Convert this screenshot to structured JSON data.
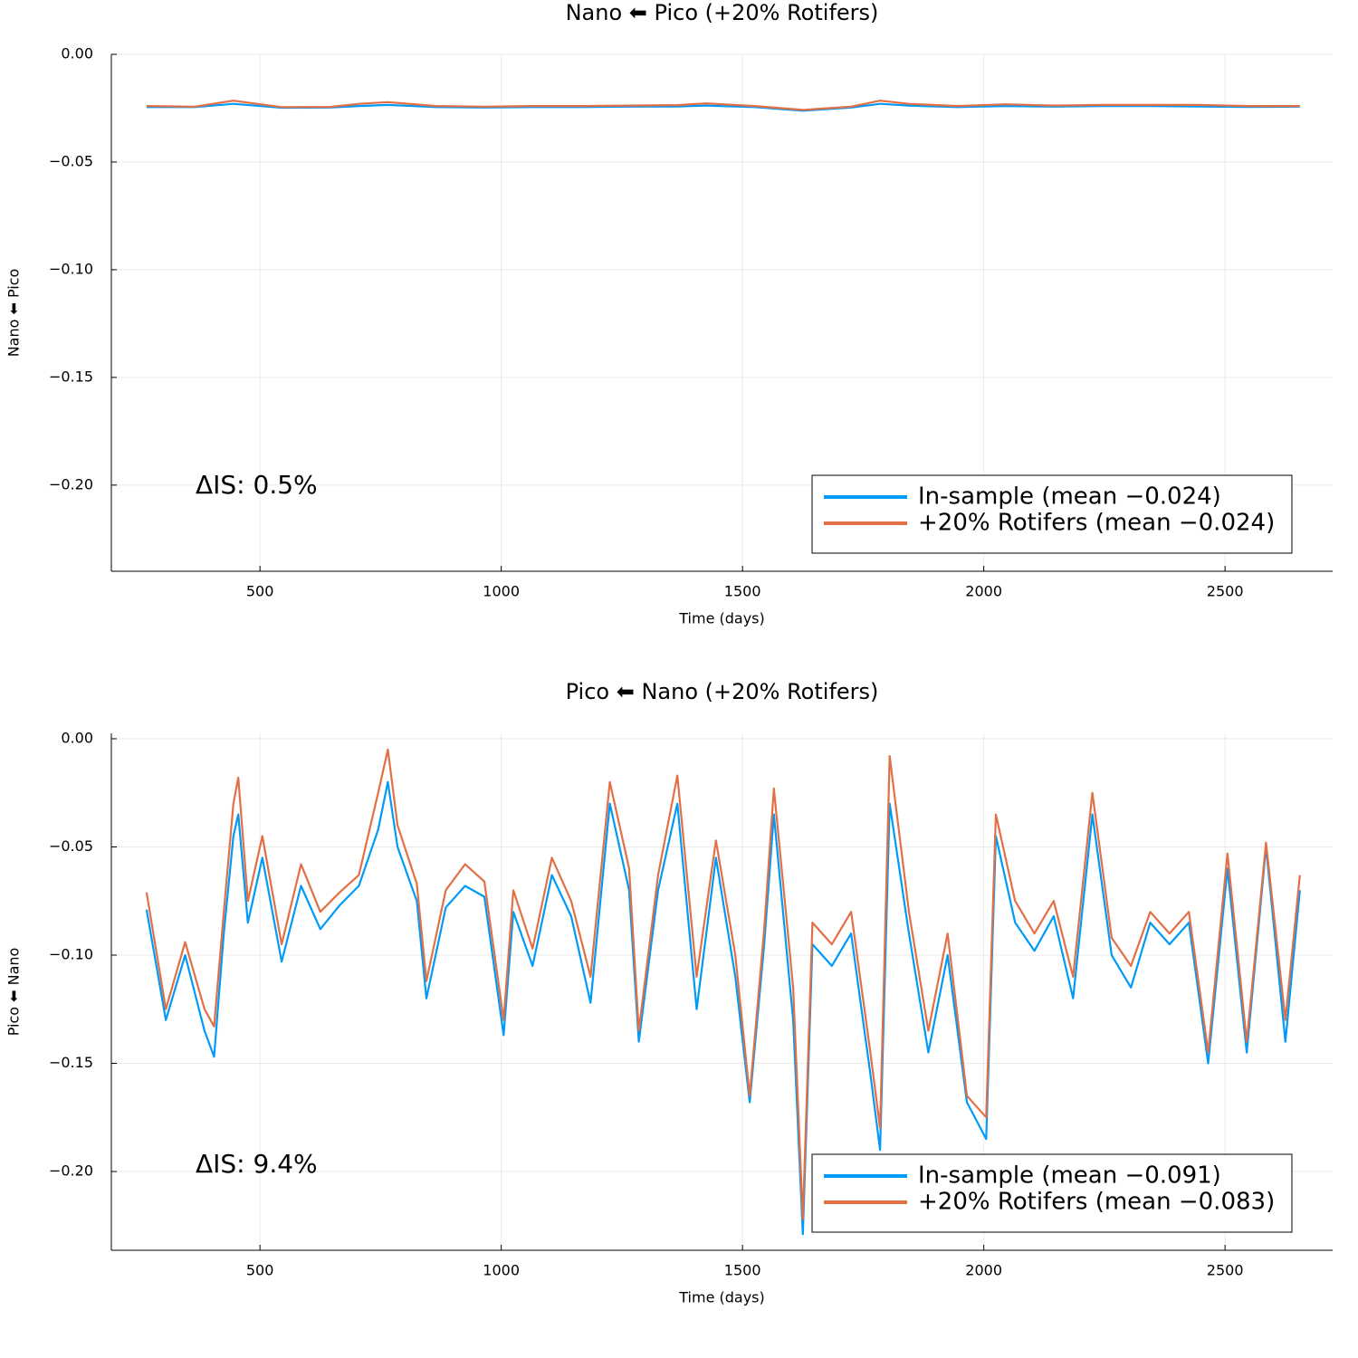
{
  "chart_data": [
    {
      "type": "line",
      "title": "Nano ⬅ Pico (+20% Rotifers)",
      "xlabel": "Time (days)",
      "ylabel": "Nano ⬅ Pico",
      "annotation": "ΔIS: 0.5%",
      "legend": "lower right",
      "grid": true,
      "xlim": [
        192,
        2723
      ],
      "ylim": [
        -0.24,
        0.0
      ],
      "xticks": [
        500,
        1000,
        1500,
        2000,
        2500
      ],
      "yticks": [
        {
          "value": 0.0,
          "label": "0.00"
        },
        {
          "value": -0.05,
          "label": "−0.05"
        },
        {
          "value": -0.1,
          "label": "−0.10"
        },
        {
          "value": -0.15,
          "label": "−0.15"
        },
        {
          "value": -0.2,
          "label": "−0.20"
        }
      ],
      "x": [
        265,
        365,
        445,
        545,
        645,
        705,
        765,
        865,
        965,
        1065,
        1165,
        1265,
        1365,
        1425,
        1525,
        1625,
        1725,
        1785,
        1845,
        1945,
        2045,
        2145,
        2245,
        2345,
        2445,
        2545,
        2655
      ],
      "series": [
        {
          "name": "In-sample (mean −0.024)",
          "color": "#009af9",
          "values": [
            -0.0245,
            -0.0245,
            -0.023,
            -0.0248,
            -0.0247,
            -0.024,
            -0.0235,
            -0.0245,
            -0.0247,
            -0.0245,
            -0.0245,
            -0.0243,
            -0.0242,
            -0.0238,
            -0.0245,
            -0.0262,
            -0.0247,
            -0.023,
            -0.0238,
            -0.0245,
            -0.024,
            -0.0243,
            -0.024,
            -0.024,
            -0.0242,
            -0.0244,
            -0.0243
          ]
        },
        {
          "name": "+20% Rotifers (mean −0.024)",
          "color": "#e26f46",
          "values": [
            -0.024,
            -0.0243,
            -0.0215,
            -0.0245,
            -0.0244,
            -0.023,
            -0.0222,
            -0.024,
            -0.0243,
            -0.024,
            -0.024,
            -0.0238,
            -0.0236,
            -0.0228,
            -0.024,
            -0.0258,
            -0.0243,
            -0.0215,
            -0.023,
            -0.024,
            -0.0232,
            -0.0238,
            -0.0235,
            -0.0235,
            -0.0235,
            -0.024,
            -0.024
          ]
        }
      ]
    },
    {
      "type": "line",
      "title": "Pico ⬅ Nano (+20% Rotifers)",
      "xlabel": "Time (days)",
      "ylabel": "Pico ⬅ Nano",
      "annotation": "ΔIS: 9.4%",
      "legend": "lower right",
      "grid": true,
      "xlim": [
        192,
        2723
      ],
      "ylim": [
        -0.2364,
        0.0025
      ],
      "xticks": [
        500,
        1000,
        1500,
        2000,
        2500
      ],
      "yticks": [
        {
          "value": 0.0,
          "label": "0.00"
        },
        {
          "value": -0.05,
          "label": "−0.05"
        },
        {
          "value": -0.1,
          "label": "−0.10"
        },
        {
          "value": -0.15,
          "label": "−0.15"
        },
        {
          "value": -0.2,
          "label": "−0.20"
        }
      ],
      "x": [
        265,
        305,
        345,
        385,
        405,
        425,
        445,
        455,
        475,
        505,
        545,
        585,
        625,
        665,
        705,
        745,
        765,
        785,
        825,
        845,
        885,
        925,
        965,
        1005,
        1025,
        1065,
        1105,
        1145,
        1185,
        1225,
        1265,
        1285,
        1325,
        1365,
        1405,
        1445,
        1485,
        1515,
        1545,
        1565,
        1605,
        1625,
        1645,
        1685,
        1725,
        1765,
        1785,
        1805,
        1845,
        1885,
        1925,
        1965,
        2005,
        2025,
        2065,
        2105,
        2145,
        2185,
        2225,
        2265,
        2305,
        2345,
        2385,
        2425,
        2465,
        2505,
        2545,
        2585,
        2625,
        2655
      ],
      "series": [
        {
          "name": "In-sample (mean −0.091)",
          "color": "#009af9",
          "values": [
            -0.079,
            -0.13,
            -0.1,
            -0.135,
            -0.147,
            -0.09,
            -0.045,
            -0.035,
            -0.085,
            -0.055,
            -0.103,
            -0.068,
            -0.088,
            -0.077,
            -0.068,
            -0.042,
            -0.02,
            -0.05,
            -0.075,
            -0.12,
            -0.078,
            -0.068,
            -0.073,
            -0.137,
            -0.08,
            -0.105,
            -0.063,
            -0.082,
            -0.122,
            -0.03,
            -0.07,
            -0.14,
            -0.07,
            -0.03,
            -0.125,
            -0.055,
            -0.11,
            -0.168,
            -0.095,
            -0.035,
            -0.13,
            -0.229,
            -0.095,
            -0.105,
            -0.09,
            -0.155,
            -0.19,
            -0.03,
            -0.09,
            -0.145,
            -0.1,
            -0.168,
            -0.185,
            -0.045,
            -0.085,
            -0.098,
            -0.082,
            -0.12,
            -0.035,
            -0.1,
            -0.115,
            -0.085,
            -0.095,
            -0.085,
            -0.15,
            -0.06,
            -0.145,
            -0.05,
            -0.14,
            -0.07
          ]
        },
        {
          "name": "+20% Rotifers (mean −0.083)",
          "color": "#e26f46",
          "values": [
            -0.071,
            -0.125,
            -0.094,
            -0.125,
            -0.133,
            -0.08,
            -0.03,
            -0.018,
            -0.075,
            -0.045,
            -0.095,
            -0.058,
            -0.08,
            -0.071,
            -0.063,
            -0.025,
            -0.005,
            -0.04,
            -0.067,
            -0.112,
            -0.07,
            -0.058,
            -0.066,
            -0.13,
            -0.07,
            -0.097,
            -0.055,
            -0.075,
            -0.11,
            -0.02,
            -0.06,
            -0.135,
            -0.063,
            -0.017,
            -0.11,
            -0.047,
            -0.1,
            -0.165,
            -0.088,
            -0.023,
            -0.115,
            -0.222,
            -0.085,
            -0.095,
            -0.08,
            -0.145,
            -0.18,
            -0.008,
            -0.08,
            -0.135,
            -0.09,
            -0.165,
            -0.175,
            -0.035,
            -0.075,
            -0.09,
            -0.075,
            -0.11,
            -0.025,
            -0.092,
            -0.105,
            -0.08,
            -0.09,
            -0.08,
            -0.145,
            -0.053,
            -0.14,
            -0.048,
            -0.13,
            -0.063
          ]
        }
      ]
    }
  ]
}
